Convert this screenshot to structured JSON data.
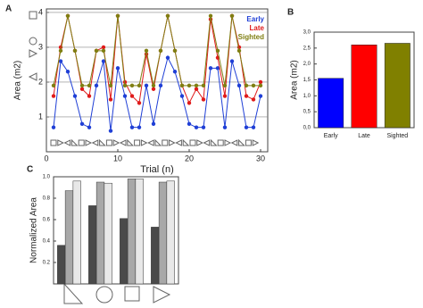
{
  "chart_data": [
    {
      "type": "line",
      "panel": "A",
      "xlabel": "Trial (n)",
      "ylabel": "Area (m2)",
      "x": [
        1,
        2,
        3,
        4,
        5,
        6,
        7,
        8,
        9,
        10,
        11,
        12,
        13,
        14,
        15,
        16,
        17,
        18,
        19,
        20,
        21,
        22,
        23,
        24,
        25,
        26,
        27,
        28,
        29,
        30
      ],
      "xlim": [
        0,
        31
      ],
      "xticks": [
        0,
        10,
        20,
        30
      ],
      "ylim": [
        0,
        4.1
      ],
      "yticks": [
        1,
        2,
        3,
        4
      ],
      "grid": true,
      "legend": "upper right",
      "series": [
        {
          "name": "Early",
          "color": "#1f3fd6",
          "values": [
            0.7,
            2.6,
            2.3,
            1.6,
            0.8,
            0.7,
            1.9,
            2.6,
            0.6,
            2.4,
            1.6,
            0.7,
            0.7,
            1.9,
            0.8,
            1.9,
            2.7,
            2.3,
            1.6,
            0.8,
            0.7,
            0.7,
            2.4,
            2.4,
            0.7,
            2.6,
            1.9,
            0.7,
            0.7,
            1.6
          ]
        },
        {
          "name": "Late",
          "color": "#e01a1a",
          "values": [
            1.6,
            3.0,
            3.9,
            2.9,
            1.8,
            1.6,
            2.9,
            3.0,
            1.5,
            3.9,
            2.0,
            1.6,
            1.4,
            2.8,
            1.8,
            2.9,
            3.9,
            2.9,
            1.9,
            1.4,
            1.8,
            1.5,
            3.8,
            2.7,
            1.6,
            3.9,
            3.0,
            1.6,
            1.5,
            2.0
          ]
        },
        {
          "name": "Sighted",
          "color": "#7f7f12",
          "values": [
            1.9,
            2.9,
            3.9,
            2.9,
            1.9,
            1.9,
            2.9,
            2.9,
            1.9,
            3.9,
            1.9,
            1.9,
            1.9,
            2.9,
            1.9,
            2.9,
            3.9,
            2.9,
            1.9,
            1.9,
            1.9,
            1.9,
            3.9,
            2.9,
            1.9,
            3.9,
            2.9,
            1.9,
            1.9,
            1.9
          ]
        }
      ]
    },
    {
      "type": "bar",
      "panel": "B",
      "ylabel": "Area (m2)",
      "categories": [
        "Early",
        "Late",
        "Sighted"
      ],
      "values": [
        1.55,
        2.6,
        2.65
      ],
      "colors": [
        "#0000ff",
        "#ff0000",
        "#808000"
      ],
      "ylim": [
        0,
        3
      ],
      "yticks": [
        {
          "value": 0,
          "label": "0,0"
        },
        {
          "value": 0.5,
          "label": "0,5"
        },
        {
          "value": 1,
          "label": "1,0"
        },
        {
          "value": 1.5,
          "label": "1,5"
        },
        {
          "value": 2,
          "label": "2,0"
        },
        {
          "value": 2.5,
          "label": "2,5"
        },
        {
          "value": 3,
          "label": "3,0"
        }
      ]
    },
    {
      "type": "grouped-bar",
      "panel": "C",
      "ylabel": "Normalized Area",
      "categories": [
        null,
        null,
        null,
        null
      ],
      "series": [
        {
          "color": "#4a4a4a",
          "values": [
            0.36,
            0.73,
            0.61,
            0.53
          ]
        },
        {
          "color": "#a8a8a8",
          "values": [
            0.87,
            0.95,
            0.98,
            0.95
          ]
        },
        {
          "color": "#e8e8e8",
          "values": [
            0.96,
            0.94,
            0.98,
            0.96
          ]
        }
      ],
      "ylim": [
        0,
        1
      ],
      "yticks": [
        0.2,
        0.4,
        0.6,
        0.8,
        {
          "value": 1,
          "label": "1.0"
        }
      ]
    }
  ]
}
